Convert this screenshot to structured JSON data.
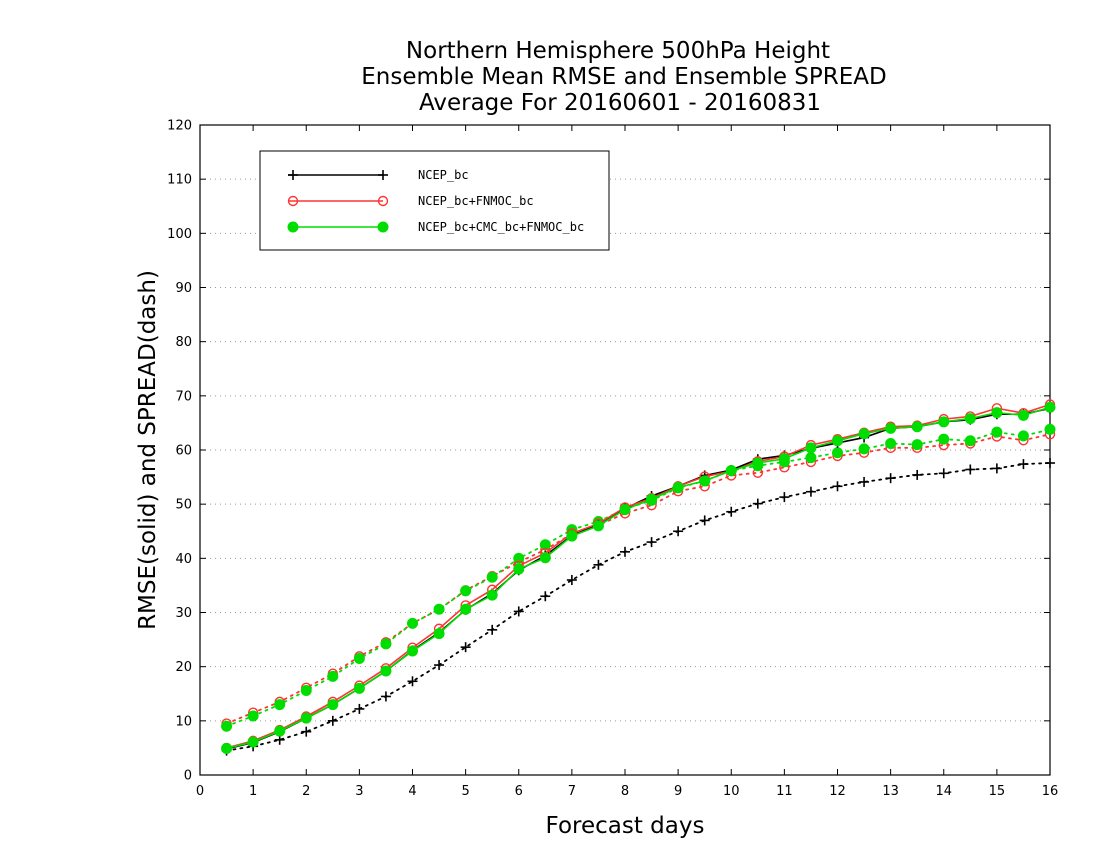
{
  "chart_data": {
    "type": "line",
    "title": [
      "Northern Hemisphere 500hPa Height",
      "Ensemble Mean RMSE and Ensemble SPREAD",
      "Average For 20160601 - 20160831"
    ],
    "xlabel": "Forecast days",
    "ylabel": "RMSE(solid) and SPREAD(dash)",
    "xlim": [
      0,
      16
    ],
    "ylim": [
      0,
      120
    ],
    "xticks": [
      0,
      1,
      2,
      3,
      4,
      5,
      6,
      7,
      8,
      9,
      10,
      11,
      12,
      13,
      14,
      15,
      16
    ],
    "yticks": [
      0,
      10,
      20,
      30,
      40,
      50,
      60,
      70,
      80,
      90,
      100,
      110,
      120
    ],
    "grid": "horizontal dotted",
    "legend_position": "top-left",
    "x": [
      0.5,
      1,
      1.5,
      2,
      2.5,
      3,
      3.5,
      4,
      4.5,
      5,
      5.5,
      6,
      6.5,
      7,
      7.5,
      8,
      8.5,
      9,
      9.5,
      10,
      10.5,
      11,
      11.5,
      12,
      12.5,
      13,
      13.5,
      14,
      14.5,
      15,
      15.5,
      16
    ],
    "series": [
      {
        "name": "NCEP_bc",
        "color": "#000000",
        "marker": "plus",
        "rmse": [
          4.8,
          6.0,
          8.0,
          10.5,
          13.0,
          16.0,
          19.2,
          23.0,
          26.3,
          30.5,
          33.5,
          37.8,
          40.5,
          44.2,
          46.2,
          49.2,
          51.5,
          53.3,
          55.3,
          56.3,
          58.3,
          59.0,
          60.3,
          61.3,
          62.3,
          64.0,
          64.3,
          65.2,
          65.6,
          66.6,
          66.6,
          67.7
        ],
        "spread": [
          4.5,
          5.3,
          6.5,
          8.0,
          10.0,
          12.2,
          14.5,
          17.3,
          20.3,
          23.6,
          26.8,
          30.2,
          33.0,
          36.0,
          38.8,
          41.2,
          43.0,
          45.0,
          47.0,
          48.6,
          50.1,
          51.3,
          52.3,
          53.3,
          54.1,
          54.8,
          55.4,
          55.7,
          56.4,
          56.6,
          57.4,
          57.6
        ]
      },
      {
        "name": "NCEP_bc+FNMOC_bc",
        "color": "#ff3333",
        "marker": "open-circle",
        "rmse": [
          5.0,
          6.3,
          8.3,
          10.8,
          13.5,
          16.5,
          19.7,
          23.5,
          27.0,
          31.3,
          34.2,
          38.6,
          41.0,
          44.6,
          46.4,
          49.4,
          51.1,
          53.3,
          55.1,
          56.1,
          57.9,
          58.8,
          60.9,
          62.0,
          63.2,
          64.3,
          64.5,
          65.7,
          66.2,
          67.7,
          66.8,
          68.4
        ],
        "spread": [
          9.5,
          11.5,
          13.5,
          16.1,
          18.7,
          21.9,
          24.5,
          28.0,
          30.6,
          34.1,
          36.7,
          39.3,
          41.6,
          44.5,
          46.1,
          48.3,
          49.8,
          52.4,
          53.3,
          55.3,
          55.8,
          56.8,
          57.8,
          58.9,
          59.5,
          60.4,
          60.4,
          60.9,
          61.2,
          62.5,
          61.8,
          62.9
        ]
      },
      {
        "name": "NCEP_bc+CMC_bc+FNMOC_bc",
        "color": "#00dd00",
        "marker": "filled-circle",
        "rmse": [
          4.9,
          6.1,
          8.1,
          10.5,
          13.0,
          16.0,
          19.2,
          22.9,
          26.1,
          30.6,
          33.2,
          38.0,
          40.1,
          44.1,
          46.0,
          49.0,
          50.9,
          53.1,
          54.3,
          56.2,
          57.6,
          58.4,
          60.4,
          61.7,
          63.0,
          64.0,
          64.3,
          65.2,
          65.8,
          66.9,
          66.4,
          67.9
        ],
        "spread": [
          9.0,
          10.9,
          13.0,
          15.6,
          18.2,
          21.5,
          24.2,
          28.0,
          30.6,
          34.0,
          36.5,
          40.0,
          42.5,
          45.3,
          46.8,
          49.1,
          50.7,
          53.0,
          54.3,
          56.2,
          57.1,
          57.8,
          58.6,
          59.5,
          60.2,
          61.2,
          61.0,
          62.0,
          61.7,
          63.3,
          62.6,
          63.8
        ]
      }
    ]
  }
}
